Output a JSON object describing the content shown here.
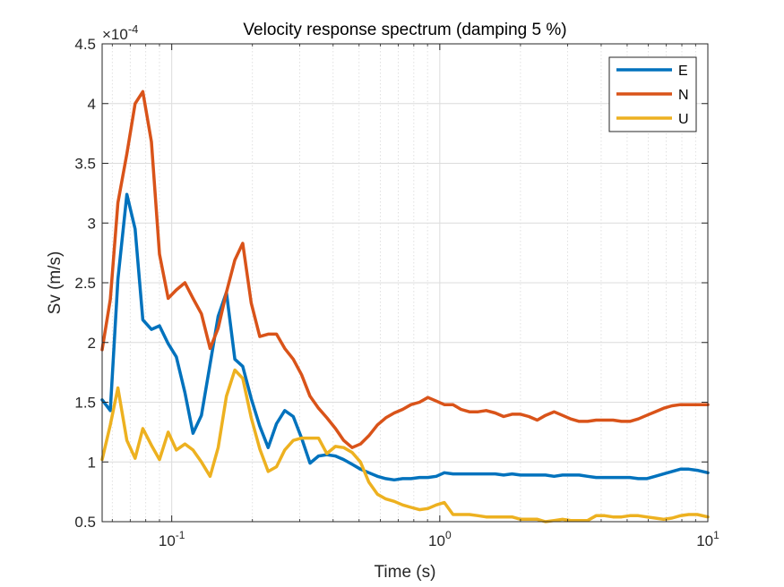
{
  "chart_data": {
    "type": "line",
    "title": "Velocity response spectrum (damping 5 %)",
    "xlabel": "Time (s)",
    "ylabel": "Sv (m/s)",
    "x_scale": "log",
    "xlim": [
      0.055,
      10
    ],
    "ylim": [
      0.5,
      4.5
    ],
    "y_exponent_label": "×10",
    "y_exponent_power": "-4",
    "x_tick_labels": [
      {
        "base": "10",
        "power": "-1",
        "value": 0.1
      },
      {
        "base": "10",
        "power": "0",
        "value": 1
      },
      {
        "base": "10",
        "power": "1",
        "value": 10
      }
    ],
    "y_ticks": [
      0.5,
      1,
      1.5,
      2,
      2.5,
      3,
      3.5,
      4,
      4.5
    ],
    "y_tick_labels": [
      "0.5",
      "1",
      "1.5",
      "2",
      "2.5",
      "3",
      "3.5",
      "4",
      "4.5"
    ],
    "grid": true,
    "legend_position": "top-right",
    "x": [
      0.055,
      0.059,
      0.063,
      0.068,
      0.073,
      0.078,
      0.084,
      0.09,
      0.097,
      0.104,
      0.112,
      0.12,
      0.129,
      0.139,
      0.149,
      0.16,
      0.172,
      0.184,
      0.198,
      0.213,
      0.229,
      0.246,
      0.264,
      0.284,
      0.305,
      0.328,
      0.353,
      0.379,
      0.408,
      0.438,
      0.471,
      0.506,
      0.544,
      0.585,
      0.629,
      0.676,
      0.727,
      0.781,
      0.84,
      0.903,
      0.97,
      1.04,
      1.12,
      1.2,
      1.29,
      1.39,
      1.49,
      1.61,
      1.73,
      1.86,
      2.0,
      2.15,
      2.31,
      2.48,
      2.67,
      2.87,
      3.08,
      3.31,
      3.56,
      3.83,
      4.12,
      4.43,
      4.76,
      5.12,
      5.5,
      5.91,
      6.36,
      6.84,
      7.35,
      7.9,
      8.49,
      9.13,
      10.0
    ],
    "series": [
      {
        "name": "E",
        "color": "#0072BD",
        "values": [
          1.52,
          1.43,
          2.53,
          3.24,
          2.95,
          2.19,
          2.11,
          2.14,
          1.99,
          1.88,
          1.58,
          1.24,
          1.39,
          1.82,
          2.22,
          2.42,
          1.86,
          1.8,
          1.53,
          1.3,
          1.12,
          1.32,
          1.43,
          1.38,
          1.2,
          0.99,
          1.05,
          1.06,
          1.05,
          1.02,
          0.98,
          0.94,
          0.91,
          0.88,
          0.86,
          0.85,
          0.86,
          0.86,
          0.87,
          0.87,
          0.88,
          0.91,
          0.9,
          0.9,
          0.9,
          0.9,
          0.9,
          0.9,
          0.89,
          0.9,
          0.89,
          0.89,
          0.89,
          0.89,
          0.88,
          0.89,
          0.89,
          0.89,
          0.88,
          0.87,
          0.87,
          0.87,
          0.87,
          0.87,
          0.86,
          0.86,
          0.88,
          0.9,
          0.92,
          0.94,
          0.94,
          0.93,
          0.91
        ]
      },
      {
        "name": "N",
        "color": "#D95319",
        "values": [
          1.94,
          2.36,
          3.17,
          3.58,
          4.0,
          4.1,
          3.68,
          2.74,
          2.37,
          2.44,
          2.5,
          2.37,
          2.24,
          1.95,
          2.12,
          2.42,
          2.69,
          2.83,
          2.33,
          2.05,
          2.07,
          2.07,
          1.95,
          1.86,
          1.73,
          1.55,
          1.45,
          1.37,
          1.28,
          1.18,
          1.12,
          1.15,
          1.22,
          1.31,
          1.37,
          1.41,
          1.44,
          1.48,
          1.5,
          1.54,
          1.51,
          1.48,
          1.48,
          1.44,
          1.42,
          1.42,
          1.43,
          1.41,
          1.38,
          1.4,
          1.4,
          1.38,
          1.35,
          1.39,
          1.42,
          1.39,
          1.36,
          1.34,
          1.34,
          1.35,
          1.35,
          1.35,
          1.34,
          1.34,
          1.36,
          1.39,
          1.42,
          1.45,
          1.47,
          1.48,
          1.48,
          1.48,
          1.48
        ]
      },
      {
        "name": "U",
        "color": "#EDB120",
        "values": [
          1.02,
          1.31,
          1.62,
          1.18,
          1.03,
          1.28,
          1.14,
          1.02,
          1.25,
          1.1,
          1.15,
          1.1,
          1.0,
          0.88,
          1.12,
          1.55,
          1.77,
          1.7,
          1.37,
          1.11,
          0.92,
          0.96,
          1.1,
          1.18,
          1.2,
          1.2,
          1.2,
          1.07,
          1.13,
          1.12,
          1.08,
          1.0,
          0.83,
          0.73,
          0.69,
          0.67,
          0.64,
          0.62,
          0.6,
          0.61,
          0.64,
          0.66,
          0.56,
          0.56,
          0.56,
          0.55,
          0.54,
          0.54,
          0.54,
          0.54,
          0.52,
          0.52,
          0.52,
          0.5,
          0.51,
          0.52,
          0.51,
          0.51,
          0.51,
          0.55,
          0.55,
          0.54,
          0.54,
          0.55,
          0.55,
          0.54,
          0.53,
          0.52,
          0.53,
          0.55,
          0.56,
          0.56,
          0.54
        ]
      }
    ]
  }
}
